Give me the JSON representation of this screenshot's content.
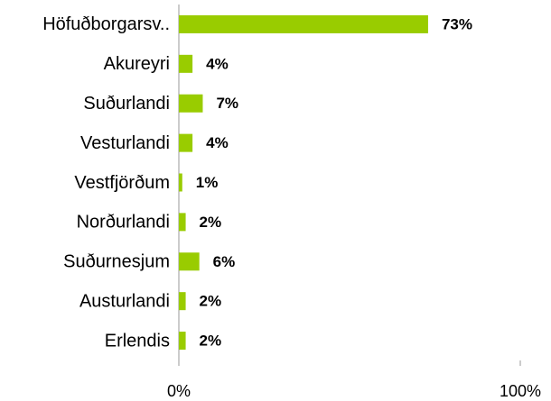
{
  "chart_data": {
    "type": "barh",
    "categories": [
      "Höfuðborgarsv..",
      "Akureyri",
      "Suðurlandi",
      "Vesturlandi",
      "Vestfjörðum",
      "Norðurlandi",
      "Suðurnesjum",
      "Austurlandi",
      "Erlendis"
    ],
    "values": [
      73,
      4,
      7,
      4,
      1,
      2,
      6,
      2,
      2
    ],
    "value_labels": [
      "73%",
      "4%",
      "7%",
      "4%",
      "1%",
      "2%",
      "6%",
      "2%",
      "2%"
    ],
    "color": "#99cc00",
    "xlim": [
      0,
      100
    ],
    "xticks": [
      {
        "value": 0,
        "label": "0%"
      },
      {
        "value": 100,
        "label": "100%"
      }
    ]
  }
}
